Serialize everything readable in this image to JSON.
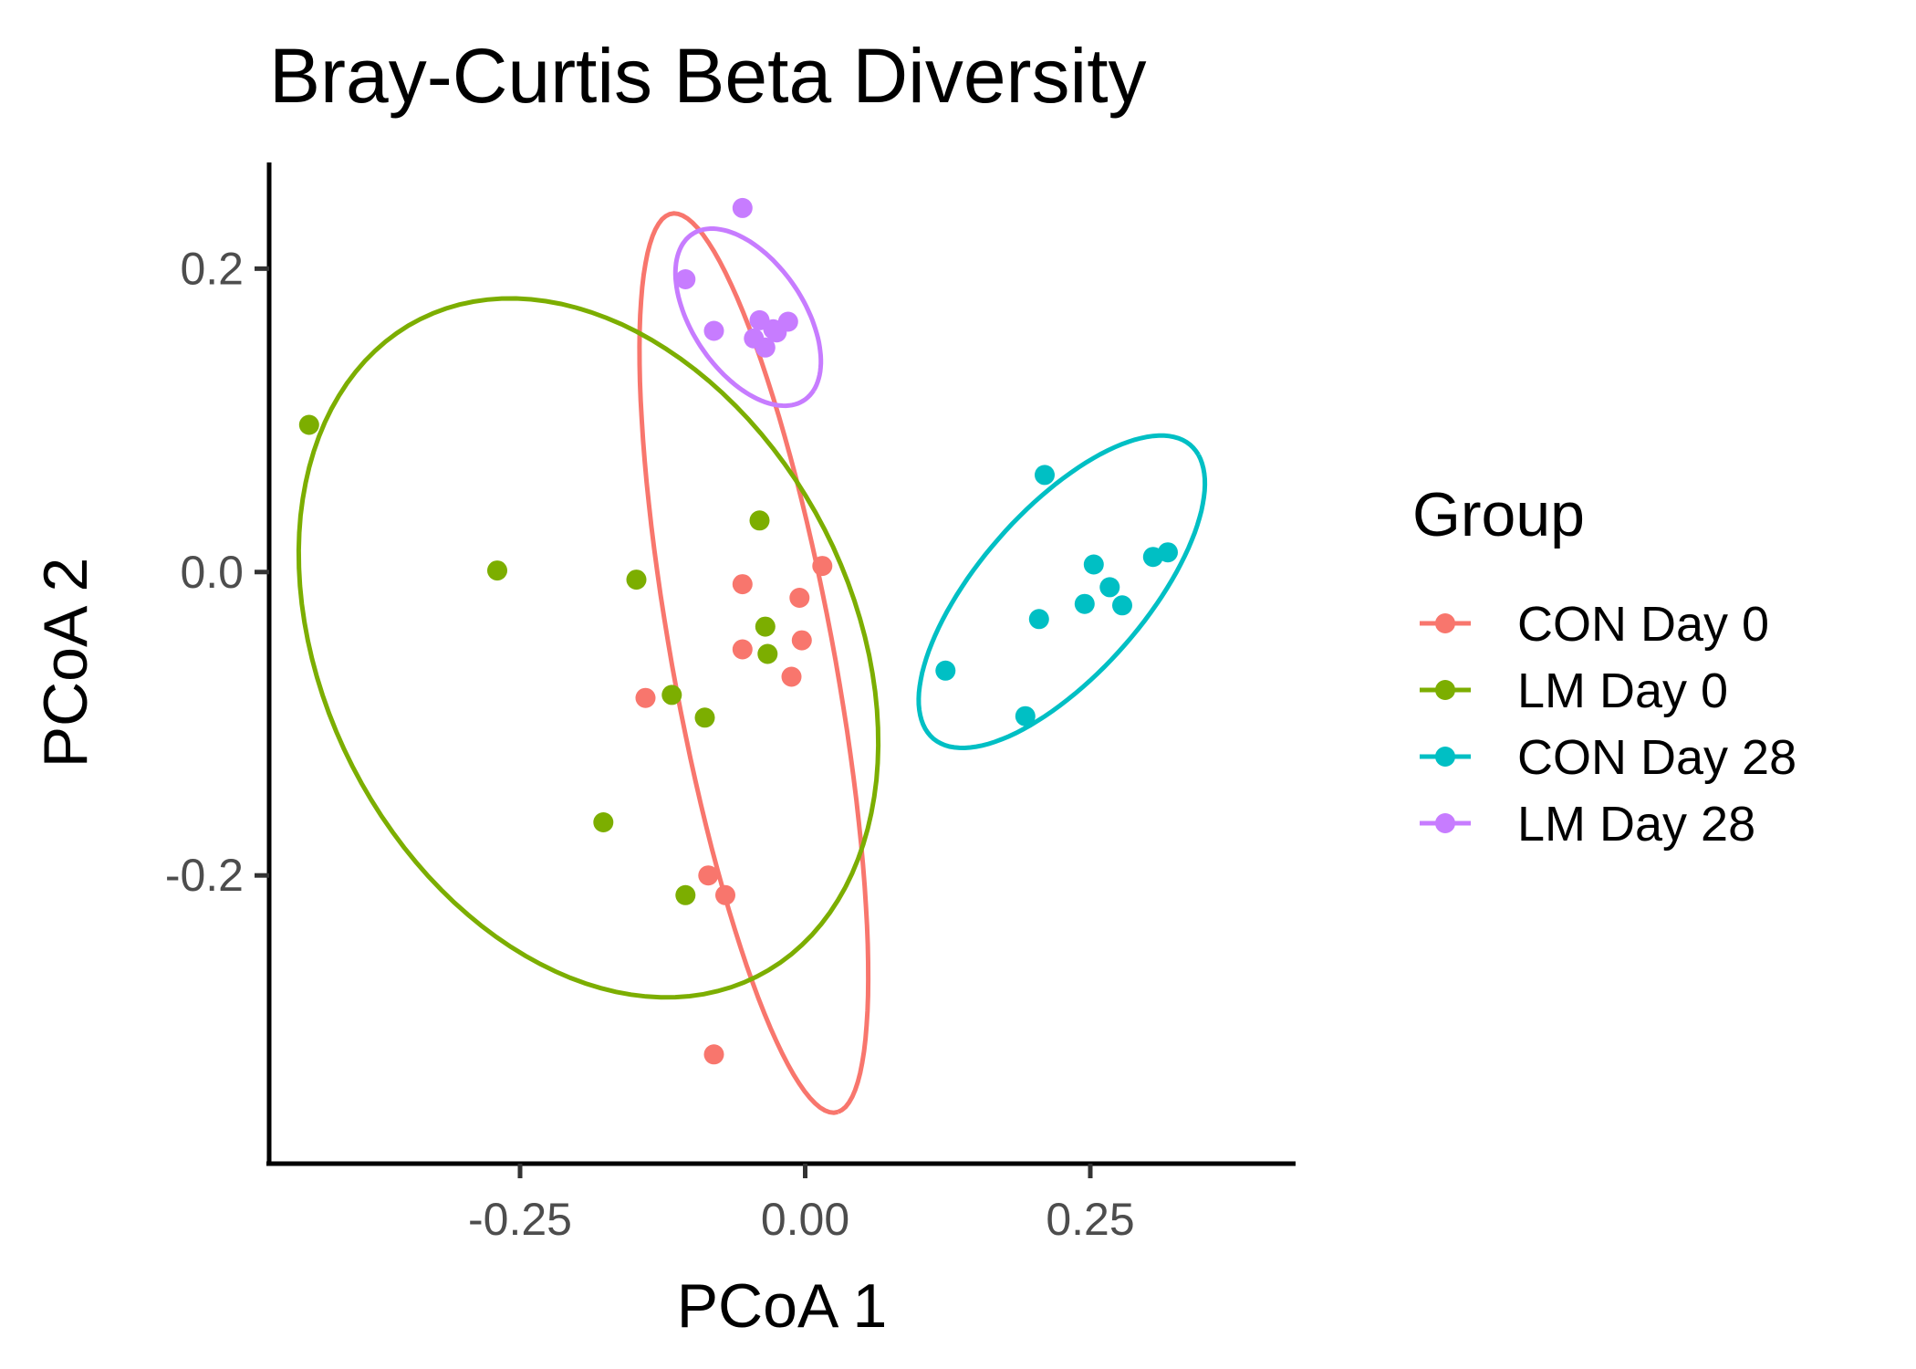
{
  "chart_data": {
    "type": "scatter",
    "title": "Bray-Curtis Beta Diversity",
    "xlabel": "PCoA 1",
    "ylabel": "PCoA 2",
    "xlim": [
      -0.47,
      0.43
    ],
    "ylim": [
      -0.39,
      0.27
    ],
    "x_ticks": [
      -0.25,
      0.0,
      0.25
    ],
    "x_tick_labels": [
      "-0.25",
      "0.00",
      "0.25"
    ],
    "y_ticks": [
      0.2,
      0.0,
      -0.2
    ],
    "y_tick_labels": [
      "0.2",
      "0.0",
      "-0.2"
    ],
    "grid": false,
    "legend": {
      "title": "Group",
      "position": "right"
    },
    "series": [
      {
        "name": "CON Day 0",
        "color": "#F8766D",
        "points": [
          [
            -0.055,
            -0.008
          ],
          [
            0.015,
            0.004
          ],
          [
            -0.005,
            -0.017
          ],
          [
            -0.055,
            -0.051
          ],
          [
            -0.003,
            -0.045
          ],
          [
            -0.012,
            -0.069
          ],
          [
            -0.14,
            -0.083
          ],
          [
            -0.085,
            -0.2
          ],
          [
            -0.07,
            -0.213
          ],
          [
            -0.08,
            -0.318
          ]
        ],
        "ellipse": {
          "cx": -0.045,
          "cy": -0.06,
          "rx": 0.305,
          "ry": 0.07,
          "angle_deg": -76
        }
      },
      {
        "name": "LM Day 0",
        "color": "#7CAE00",
        "points": [
          [
            -0.435,
            0.097
          ],
          [
            -0.27,
            0.001
          ],
          [
            -0.148,
            -0.005
          ],
          [
            -0.04,
            0.034
          ],
          [
            -0.035,
            -0.036
          ],
          [
            -0.033,
            -0.054
          ],
          [
            -0.117,
            -0.081
          ],
          [
            -0.088,
            -0.096
          ],
          [
            -0.177,
            -0.165
          ],
          [
            -0.105,
            -0.213
          ]
        ],
        "ellipse": {
          "cx": -0.19,
          "cy": -0.05,
          "rx": 0.275,
          "ry": 0.205,
          "angle_deg": -35
        }
      },
      {
        "name": "CON Day 28",
        "color": "#00BFC4",
        "points": [
          [
            0.21,
            0.064
          ],
          [
            0.253,
            0.005
          ],
          [
            0.267,
            -0.01
          ],
          [
            0.245,
            -0.021
          ],
          [
            0.278,
            -0.022
          ],
          [
            0.205,
            -0.031
          ],
          [
            0.305,
            0.01
          ],
          [
            0.318,
            0.013
          ],
          [
            0.123,
            -0.065
          ],
          [
            0.193,
            -0.095
          ]
        ],
        "ellipse": {
          "cx": 0.225,
          "cy": -0.013,
          "rx": 0.15,
          "ry": 0.062,
          "angle_deg": 37
        }
      },
      {
        "name": "LM Day 28",
        "color": "#C77CFF",
        "points": [
          [
            -0.055,
            0.24
          ],
          [
            -0.105,
            0.193
          ],
          [
            -0.08,
            0.159
          ],
          [
            -0.04,
            0.166
          ],
          [
            -0.045,
            0.154
          ],
          [
            -0.028,
            0.16
          ],
          [
            -0.015,
            0.165
          ],
          [
            -0.035,
            0.148
          ],
          [
            -0.025,
            0.158
          ]
        ],
        "ellipse": {
          "cx": -0.05,
          "cy": 0.168,
          "rx": 0.075,
          "ry": 0.043,
          "angle_deg": -40
        }
      }
    ]
  }
}
